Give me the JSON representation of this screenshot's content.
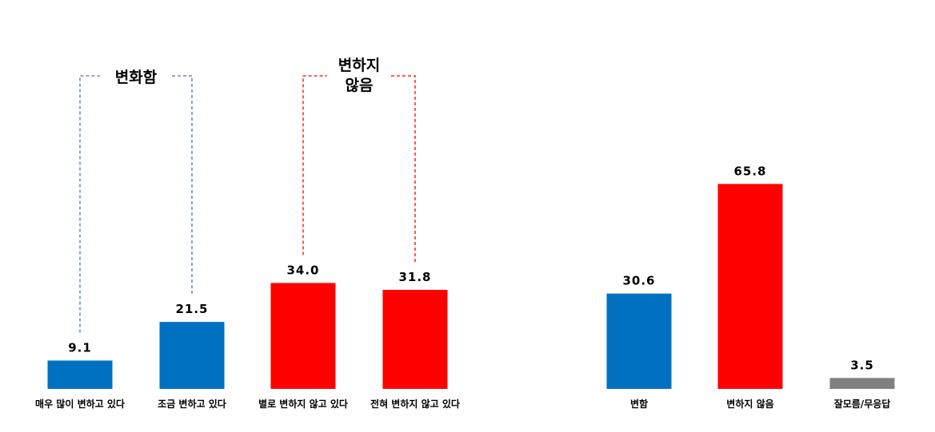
{
  "chart_data": [
    {
      "type": "bar",
      "categories": [
        "매우 많이 변하고 있다",
        "조금 변하고 있다",
        "별로 변하지 않고 있다",
        "전혀 변하지 않고 있다"
      ],
      "values": [
        9.1,
        21.5,
        34.0,
        31.8
      ],
      "value_labels": [
        "9.1",
        "21.5",
        "34.0",
        "31.8"
      ],
      "colors": [
        "#0070c0",
        "#0070c0",
        "#ff0000",
        "#ff0000"
      ],
      "annotations": [
        {
          "lines": [
            "변화함"
          ],
          "from": 0,
          "to": 1,
          "color": "#4472c4"
        },
        {
          "lines": [
            "변하지",
            "않음"
          ],
          "from": 2,
          "to": 3,
          "color": "#ff0000"
        }
      ],
      "ylim": [
        0,
        70
      ]
    },
    {
      "type": "bar",
      "categories": [
        "변함",
        "변하지 않음",
        "잘모름/무응답"
      ],
      "values": [
        30.6,
        65.8,
        3.5
      ],
      "value_labels": [
        "30.6",
        "65.8",
        "3.5"
      ],
      "colors": [
        "#0070c0",
        "#ff0000",
        "#808080"
      ],
      "ylim": [
        0,
        70
      ]
    }
  ]
}
